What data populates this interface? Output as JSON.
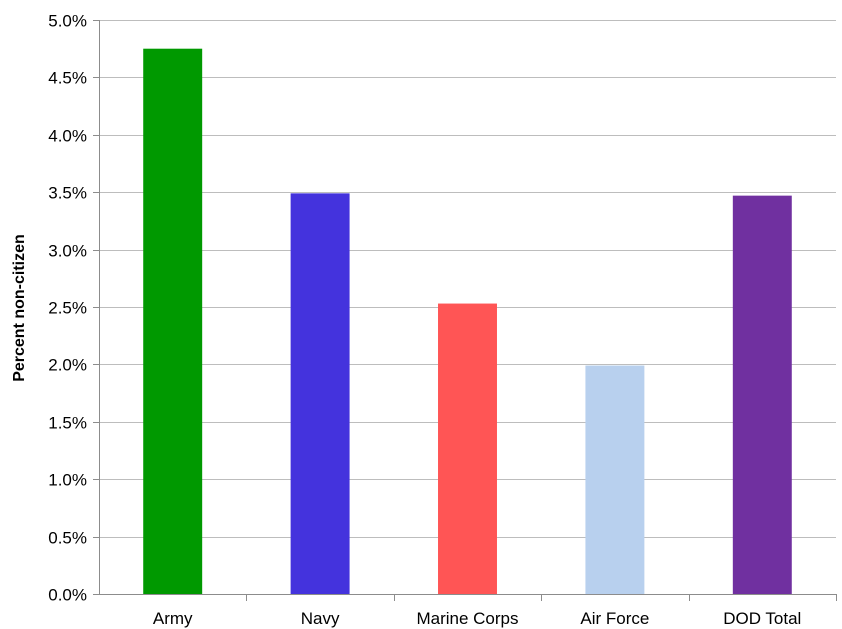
{
  "chart_data": {
    "type": "bar",
    "categories": [
      "Army",
      "Navy",
      "Marine Corps",
      "Air Force",
      "DOD Total"
    ],
    "values": [
      4.75,
      3.49,
      2.53,
      1.99,
      3.47
    ],
    "colors": [
      "#009900",
      "#4433dd",
      "#ff5555",
      "#b8d0ee",
      "#7030a0"
    ],
    "title": "",
    "xlabel": "",
    "ylabel": "Percent  non-citizen",
    "ylim": [
      0,
      5
    ],
    "yticks": [
      0,
      0.5,
      1,
      1.5,
      2,
      2.5,
      3,
      3.5,
      4,
      4.5,
      5
    ],
    "ytick_labels": [
      "0.0%",
      "0.5%",
      "1.0%",
      "1.5%",
      "2.0%",
      "2.5%",
      "3.0%",
      "3.5%",
      "4.0%",
      "4.5%",
      "5.0%"
    ],
    "grid": true,
    "legend": "none"
  }
}
